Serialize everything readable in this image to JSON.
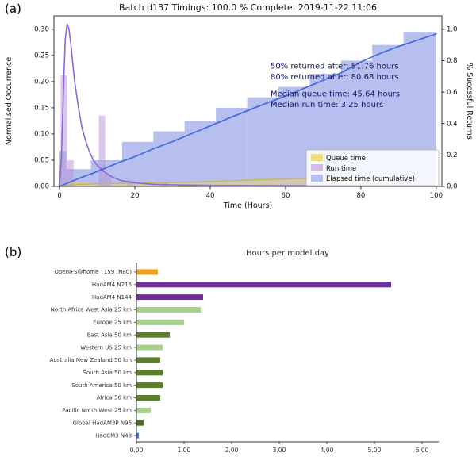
{
  "panels": {
    "a_label": "(a)",
    "b_label": "(b)"
  },
  "chart_data": [
    {
      "type": "histogram+line",
      "title": "Batch d137 Timings: 100.0 % Complete: 2019-11-22 11:06",
      "xlabel": "Time (Hours)",
      "ylabel_left": "Normalised Occurrence",
      "ylabel_right": "% Sucessful Returns",
      "xlim": [
        0,
        100
      ],
      "ylim_left": [
        0,
        0.3255
      ],
      "ylim_right": [
        0,
        1.085
      ],
      "xticks": [
        0,
        20,
        40,
        60,
        80,
        100
      ],
      "yticks_left": [
        0.0,
        0.05,
        0.1,
        0.15,
        0.2,
        0.25,
        0.3
      ],
      "yticks_right": [
        0.0,
        0.2,
        0.4,
        0.6,
        0.8,
        1.0
      ],
      "grid": false,
      "legend_position": "lower right",
      "annotation_color": "#16166b",
      "series": {
        "elapsed_hist": {
          "name": "Elapsed time (cumulative)",
          "color": "#7b8be0",
          "opacity": 0.55,
          "bars": [
            {
              "x": 0,
              "w": 1.8,
              "h": 0.068
            },
            {
              "x": 1.8,
              "w": 6.5,
              "h": 0.033
            },
            {
              "x": 8.3,
              "w": 8.3,
              "h": 0.05
            },
            {
              "x": 16.6,
              "w": 8.3,
              "h": 0.085
            },
            {
              "x": 24.9,
              "w": 8.3,
              "h": 0.105
            },
            {
              "x": 33.2,
              "w": 8.3,
              "h": 0.125
            },
            {
              "x": 41.5,
              "w": 8.3,
              "h": 0.15
            },
            {
              "x": 49.8,
              "w": 8.3,
              "h": 0.17
            },
            {
              "x": 58.1,
              "w": 8.3,
              "h": 0.19
            },
            {
              "x": 66.4,
              "w": 8.3,
              "h": 0.215
            },
            {
              "x": 74.7,
              "w": 8.3,
              "h": 0.24
            },
            {
              "x": 83.0,
              "w": 8.3,
              "h": 0.27
            },
            {
              "x": 91.3,
              "w": 8.7,
              "h": 0.295
            }
          ]
        },
        "queue_hist": {
          "name": "Queue time",
          "color": "#e8d27a",
          "opacity": 0.5,
          "bars": [
            {
              "x": 0,
              "w": 8,
              "h": 0.008
            },
            {
              "x": 8,
              "w": 8,
              "h": 0.006
            },
            {
              "x": 16,
              "w": 8,
              "h": 0.005
            },
            {
              "x": 24,
              "w": 8,
              "h": 0.006
            },
            {
              "x": 32,
              "w": 8,
              "h": 0.008
            },
            {
              "x": 40,
              "w": 8,
              "h": 0.01
            },
            {
              "x": 48,
              "w": 8,
              "h": 0.013
            },
            {
              "x": 56,
              "w": 8,
              "h": 0.016
            },
            {
              "x": 64,
              "w": 8,
              "h": 0.017
            },
            {
              "x": 72,
              "w": 8,
              "h": 0.014
            },
            {
              "x": 80,
              "w": 8,
              "h": 0.01
            },
            {
              "x": 88,
              "w": 12,
              "h": 0.006
            }
          ]
        },
        "run_hist": {
          "name": "Run time",
          "color": "#b88fd6",
          "opacity": 0.5,
          "bars": [
            {
              "x": 0.3,
              "w": 1.7,
              "h": 0.212
            },
            {
              "x": 2.0,
              "w": 1.7,
              "h": 0.05
            },
            {
              "x": 10.4,
              "w": 1.7,
              "h": 0.135
            },
            {
              "x": 12.1,
              "w": 1.7,
              "h": 0.022
            },
            {
              "x": 18,
              "w": 1.7,
              "h": 0.012
            },
            {
              "x": 27,
              "w": 1.7,
              "h": 0.006
            }
          ]
        },
        "queue_line": {
          "color": "#c9b458",
          "axis": "left",
          "points": [
            [
              0,
              0.002
            ],
            [
              5,
              0.004
            ],
            [
              10,
              0.005
            ],
            [
              20,
              0.006
            ],
            [
              30,
              0.0075
            ],
            [
              40,
              0.009
            ],
            [
              50,
              0.012
            ],
            [
              60,
              0.0145
            ],
            [
              65,
              0.015
            ],
            [
              70,
              0.0145
            ],
            [
              80,
              0.012
            ],
            [
              90,
              0.008
            ],
            [
              100,
              0.004
            ]
          ]
        },
        "run_line": {
          "color": "#8c68d8",
          "axis": "left",
          "points": [
            [
              0,
              0.001
            ],
            [
              0.5,
              0.06
            ],
            [
              1,
              0.18
            ],
            [
              1.5,
              0.28
            ],
            [
              2,
              0.31
            ],
            [
              2.5,
              0.3
            ],
            [
              3,
              0.27
            ],
            [
              3.5,
              0.235
            ],
            [
              4,
              0.2
            ],
            [
              5,
              0.15
            ],
            [
              6,
              0.11
            ],
            [
              7,
              0.085
            ],
            [
              8,
              0.065
            ],
            [
              9,
              0.05
            ],
            [
              10,
              0.04
            ],
            [
              12,
              0.027
            ],
            [
              14,
              0.018
            ],
            [
              16,
              0.012
            ],
            [
              18,
              0.009
            ],
            [
              20,
              0.007
            ],
            [
              25,
              0.004
            ],
            [
              30,
              0.003
            ],
            [
              40,
              0.002
            ],
            [
              60,
              0.0015
            ],
            [
              80,
              0.001
            ],
            [
              100,
              0.001
            ]
          ]
        },
        "cumulative_line": {
          "color": "#4169e1",
          "axis": "right",
          "points": [
            [
              0,
              0
            ],
            [
              2,
              0.02
            ],
            [
              5,
              0.05
            ],
            [
              10,
              0.095
            ],
            [
              15,
              0.145
            ],
            [
              20,
              0.19
            ],
            [
              25,
              0.24
            ],
            [
              30,
              0.285
            ],
            [
              35,
              0.335
            ],
            [
              40,
              0.385
            ],
            [
              45,
              0.435
            ],
            [
              51.76,
              0.5
            ],
            [
              55,
              0.53
            ],
            [
              60,
              0.575
            ],
            [
              65,
              0.625
            ],
            [
              70,
              0.675
            ],
            [
              75,
              0.725
            ],
            [
              80.68,
              0.8
            ],
            [
              85,
              0.845
            ],
            [
              90,
              0.89
            ],
            [
              95,
              0.93
            ],
            [
              100,
              0.97
            ]
          ]
        }
      },
      "annotations": [
        {
          "x": 56,
          "y": 0.225,
          "lines": [
            "50% returned after: 51.76 hours",
            "80% returned after: 80.68 hours"
          ]
        },
        {
          "x": 56,
          "y": 0.172,
          "lines": [
            "Median queue time: 45.64 hours",
            "Median run time: 3.25 hours"
          ]
        }
      ],
      "legend": [
        {
          "label": "Queue time",
          "color": "#eedc82"
        },
        {
          "label": "Run time",
          "color": "#d8bce8"
        },
        {
          "label": "Elapsed time (cumulative)",
          "color": "#b6bfee"
        }
      ]
    },
    {
      "type": "bar",
      "orientation": "horizontal",
      "title": "Hours per model day",
      "xlim": [
        0,
        6.35
      ],
      "xticks": [
        0,
        1,
        2,
        3,
        4,
        5,
        6
      ],
      "grid": false,
      "bars": [
        {
          "label": "OpenIFS@home T159 (N80)",
          "value": 0.45,
          "color": "#efa122"
        },
        {
          "label": "HadAM4 N216",
          "value": 5.35,
          "color": "#702f9e"
        },
        {
          "label": "HadAM4 N144",
          "value": 1.4,
          "color": "#702f9e"
        },
        {
          "label": "North Africa West Asia 25 km",
          "value": 1.35,
          "color": "#a5d18a"
        },
        {
          "label": "Europe 25 km",
          "value": 1.0,
          "color": "#a5d18a"
        },
        {
          "label": "East Asia 50 km",
          "value": 0.7,
          "color": "#5a7f2c"
        },
        {
          "label": "Western US 25 km",
          "value": 0.55,
          "color": "#a5d18a"
        },
        {
          "label": "Australia New Zealand 50 km",
          "value": 0.5,
          "color": "#5a7f2c"
        },
        {
          "label": "South Asia 50 km",
          "value": 0.55,
          "color": "#5a7f2c"
        },
        {
          "label": "South America 50 km",
          "value": 0.55,
          "color": "#5a7f2c"
        },
        {
          "label": "Africa 50 km",
          "value": 0.5,
          "color": "#5a7f2c"
        },
        {
          "label": "Pacific North West 25 km",
          "value": 0.3,
          "color": "#a5d18a"
        },
        {
          "label": "Global HadAM3P N96",
          "value": 0.15,
          "color": "#4a7023"
        },
        {
          "label": "HadCM3 N48",
          "value": 0.05,
          "color": "#4472c4"
        }
      ]
    }
  ]
}
